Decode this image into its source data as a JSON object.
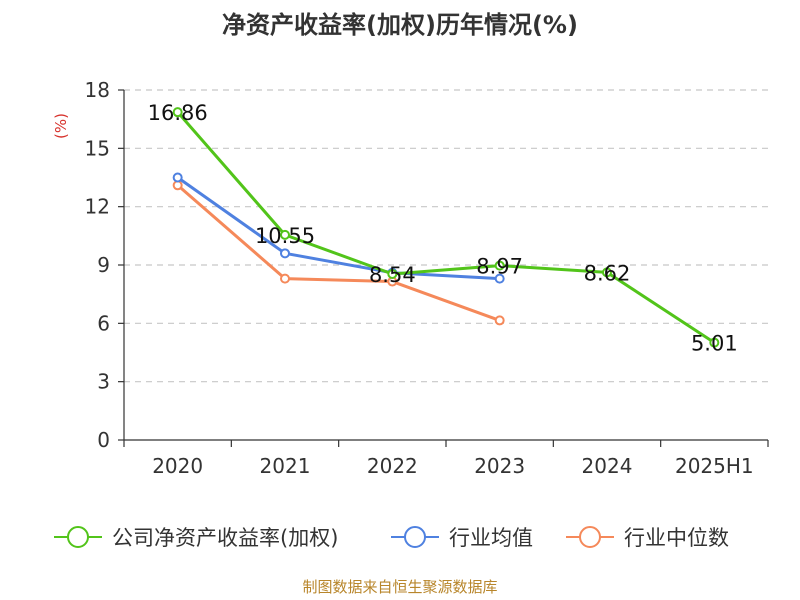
{
  "chart_data": {
    "type": "line",
    "title": "净资产收益率(加权)历年情况(%)",
    "ylabel": "(%)",
    "xlabel": "",
    "categories": [
      "2020",
      "2021",
      "2022",
      "2023",
      "2024",
      "2025H1"
    ],
    "ylim": [
      0,
      18
    ],
    "yticks": [
      0,
      3,
      6,
      9,
      12,
      15,
      18
    ],
    "grid": true,
    "legend_position": "bottom",
    "series": [
      {
        "name": "公司净资产收益率(加权)",
        "color": "#52c41a",
        "values": [
          16.86,
          10.55,
          8.54,
          8.97,
          8.62,
          5.01
        ],
        "labels": [
          "16.86",
          "10.55",
          "8.54",
          "8.97",
          "8.62",
          "5.01"
        ]
      },
      {
        "name": "行业均值",
        "color": "#4f81e0",
        "values": [
          13.5,
          9.6,
          8.6,
          8.3,
          null,
          null
        ]
      },
      {
        "name": "行业中位数",
        "color": "#f5895a",
        "values": [
          13.1,
          8.3,
          8.15,
          6.15,
          null,
          null
        ]
      }
    ]
  },
  "source": "制图数据来自恒生聚源数据库"
}
